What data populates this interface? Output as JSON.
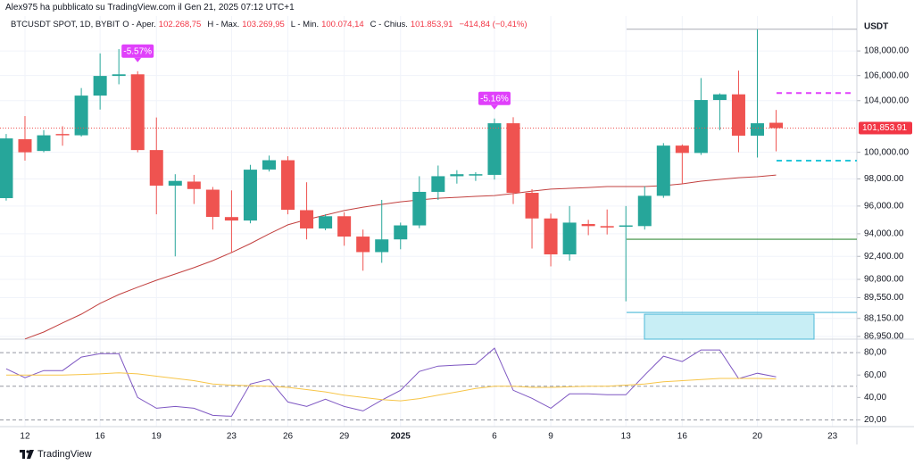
{
  "header": "Alex975 ha pubblicato su TradingView.com il Gen 21, 2025 07:12 UTC+1",
  "footer": "TradingView",
  "chart_data": [
    {
      "type": "candlestick",
      "legend": {
        "symbol": "BTCUSDT SPOT, 1D, BYBIT",
        "o": "O - Aper.",
        "o_value": "102.268,75",
        "h": "H - Max.",
        "h_value": "103.269,95",
        "l": "L - Min.",
        "l_value": "100.074,14",
        "c": "C - Chius.",
        "c_value": "101.853,91",
        "change": "−414,84 (−0,41%)"
      },
      "up_color": "#26a69a",
      "down_color": "#ef5350",
      "open": [
        96580,
        101000,
        100100,
        101400,
        101300,
        104400,
        105970,
        106100,
        100170,
        97500,
        97800,
        97200,
        95200,
        94950,
        98700,
        99400,
        95700,
        94380,
        95260,
        93800,
        92700,
        93600,
        94600,
        97040,
        98200,
        98250,
        98300,
        102230,
        96970,
        95100,
        92540,
        94700,
        94550,
        94500,
        94550,
        96750,
        100510,
        99950,
        104050,
        104500,
        101270,
        102268.75
      ],
      "high": [
        101400,
        102790,
        101700,
        102000,
        105000,
        107800,
        108150,
        106350,
        102680,
        98350,
        98300,
        97400,
        97150,
        99050,
        99750,
        99700,
        97750,
        95400,
        95550,
        94300,
        96450,
        94800,
        98200,
        99000,
        98650,
        98500,
        102600,
        102700,
        97240,
        95450,
        96000,
        95000,
        95750,
        96000,
        97450,
        100700,
        100600,
        105800,
        104580,
        106400,
        109770,
        103269.95
      ],
      "low": [
        96400,
        99370,
        100000,
        100500,
        101200,
        103300,
        105300,
        100000,
        95400,
        92400,
        96150,
        94300,
        92650,
        94750,
        98550,
        95400,
        93600,
        94250,
        93150,
        91400,
        91950,
        92900,
        94400,
        96450,
        97650,
        97850,
        97950,
        96150,
        92950,
        91700,
        92100,
        93900,
        93950,
        89300,
        94300,
        96600,
        97630,
        99800,
        101700,
        100000,
        99600,
        100074.14
      ],
      "close": [
        101060,
        100000,
        101300,
        101300,
        104400,
        105970,
        106100,
        100170,
        97500,
        97850,
        97250,
        95210,
        94950,
        98690,
        99400,
        95730,
        94380,
        95260,
        93800,
        92700,
        93600,
        94600,
        97040,
        98200,
        98350,
        98350,
        102230,
        96970,
        95100,
        92540,
        94800,
        94550,
        94450,
        94600,
        96750,
        100510,
        99950,
        104050,
        104500,
        101270,
        102230,
        101853.91
      ],
      "ma": {
        "color": "#c2403f",
        "values": [
          null,
          86780,
          87240,
          87850,
          88430,
          89160,
          89760,
          90260,
          90740,
          91170,
          91610,
          92100,
          92670,
          93300,
          93990,
          94640,
          95020,
          95340,
          95670,
          95920,
          96120,
          96310,
          96450,
          96570,
          96640,
          96710,
          96770,
          96910,
          97100,
          97240,
          97300,
          97360,
          97430,
          97430,
          97430,
          97500,
          97630,
          97830,
          97960,
          98090,
          98160,
          98290
        ]
      },
      "last_label": "101,853.91",
      "annotations": [
        {
          "text": "-5.57%",
          "x": 7
        },
        {
          "text": "-5.16%",
          "x": 26
        }
      ],
      "levels": [
        {
          "value": 109800,
          "color": "#b2b5be"
        },
        {
          "value": 104600,
          "color": "#e040fb",
          "dashed": true
        },
        {
          "value": 99370,
          "color": "#26c6da",
          "dashed": true
        },
        {
          "value": 93610,
          "color": "#388e3c"
        },
        {
          "value": 88550,
          "color": "#4bb8d8"
        }
      ],
      "y_unit": "USDT",
      "log_scale": true,
      "xlim": [
        -0.33,
        45.3
      ],
      "ylim": [
        86770,
        110900
      ],
      "yticks": [
        {
          "value": 108000,
          "label": "108,000.00"
        },
        {
          "value": 106000,
          "label": "106,000.00"
        },
        {
          "value": 104000,
          "label": "104,000.00"
        },
        {
          "value": 100000,
          "label": "100,000.00"
        },
        {
          "value": 98000,
          "label": "98,000.00"
        },
        {
          "value": 96000,
          "label": "96,000.00"
        },
        {
          "value": 94000,
          "label": "94,000.00"
        },
        {
          "value": 92400,
          "label": "92,400.00"
        },
        {
          "value": 90800,
          "label": "90,800.00"
        },
        {
          "value": 89550,
          "label": "89,550.00"
        },
        {
          "value": 88150,
          "label": "88,150.00"
        },
        {
          "value": 86950,
          "label": "86,950.00"
        }
      ],
      "grid": true
    },
    {
      "type": "line",
      "series": [
        {
          "color": "#7e57c2",
          "values": [
            65.6,
            57.6,
            64,
            64,
            76,
            79,
            79,
            40,
            30.4,
            32,
            30.4,
            24,
            23.2,
            52,
            56,
            36,
            32,
            38.4,
            32,
            28,
            37.6,
            46.4,
            63.2,
            68,
            68.8,
            69.6,
            84,
            46.4,
            39.2,
            30.4,
            43.2,
            43.2,
            42.4,
            42.4,
            60,
            76.8,
            72,
            82.4,
            82.4,
            56.8,
            61.6,
            58.4
          ]
        },
        {
          "color": "#f7c548",
          "values": [
            60,
            60,
            60,
            60,
            60.5,
            61,
            62,
            61,
            59,
            57,
            55,
            52,
            51,
            50.5,
            50,
            49,
            47,
            45,
            42,
            40,
            38,
            37,
            39,
            42,
            45,
            48,
            50,
            50,
            49,
            49,
            49.5,
            50,
            50,
            51,
            52,
            54,
            55,
            56,
            57,
            57,
            57,
            56.5
          ]
        }
      ],
      "bands": [
        80,
        50,
        20
      ],
      "xlim": [
        -0.33,
        45.3
      ],
      "xticks": [
        {
          "value": 1,
          "label": "12"
        },
        {
          "value": 5,
          "label": "16"
        },
        {
          "value": 8,
          "label": "19"
        },
        {
          "value": 12,
          "label": "23"
        },
        {
          "value": 15,
          "label": "26"
        },
        {
          "value": 18,
          "label": "29"
        },
        {
          "value": 21,
          "label": "2025"
        },
        {
          "value": 26,
          "label": "6"
        },
        {
          "value": 29,
          "label": "9"
        },
        {
          "value": 33,
          "label": "13"
        },
        {
          "value": 36,
          "label": "16"
        },
        {
          "value": 40,
          "label": "20"
        },
        {
          "value": 44,
          "label": "23"
        }
      ],
      "ylim": [
        14,
        92
      ],
      "yticks": [
        {
          "value": 80,
          "label": "80,00"
        },
        {
          "value": 60,
          "label": "60,00"
        },
        {
          "value": 40,
          "label": "40,00"
        },
        {
          "value": 20,
          "label": "20,00"
        }
      ],
      "grid": true
    }
  ]
}
